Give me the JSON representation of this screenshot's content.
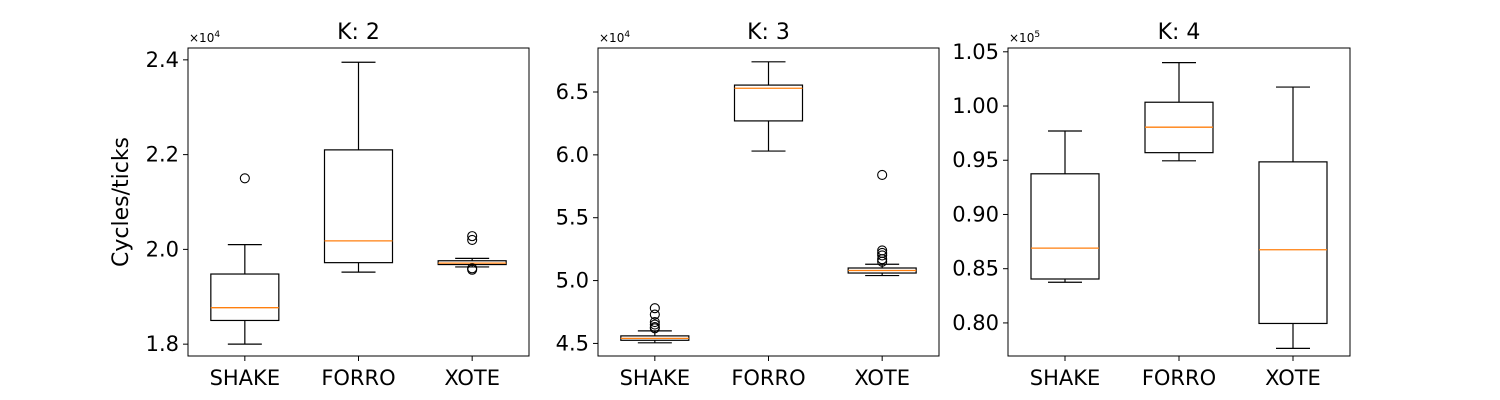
{
  "chart_data": [
    {
      "type": "box",
      "title": "K: 2",
      "ylabel": "Cycles/ticks",
      "multiplier_label": "×10",
      "multiplier_exp": "4",
      "categories": [
        "SHAKE",
        "FORRO",
        "XOTE"
      ],
      "ylim": [
        1.775,
        2.425
      ],
      "yticks": [
        1.8,
        2.0,
        2.2,
        2.4
      ],
      "ytick_labels": [
        "1.8",
        "2.0",
        "2.2",
        "2.4"
      ],
      "boxes": [
        {
          "whislo": 1.8,
          "q1": 1.85,
          "med": 1.877,
          "q3": 1.948,
          "whishi": 2.01,
          "fliers": [
            2.15
          ]
        },
        {
          "whislo": 1.952,
          "q1": 1.972,
          "med": 2.018,
          "q3": 2.21,
          "whishi": 2.395,
          "fliers": []
        },
        {
          "whislo": 1.963,
          "q1": 1.968,
          "med": 1.971,
          "q3": 1.976,
          "whishi": 1.981,
          "fliers": [
            2.028,
            2.02,
            1.96,
            1.957
          ]
        }
      ]
    },
    {
      "type": "box",
      "title": "K: 3",
      "ylabel": "",
      "multiplier_label": "×10",
      "multiplier_exp": "4",
      "categories": [
        "SHAKE",
        "FORRO",
        "XOTE"
      ],
      "ylim": [
        4.4,
        6.85
      ],
      "yticks": [
        4.5,
        5.0,
        5.5,
        6.0,
        6.5
      ],
      "ytick_labels": [
        "4.5",
        "5.0",
        "5.5",
        "6.0",
        "6.5"
      ],
      "boxes": [
        {
          "whislo": 4.505,
          "q1": 4.525,
          "med": 4.54,
          "q3": 4.56,
          "whishi": 4.6,
          "fliers": [
            4.78,
            4.73,
            4.67,
            4.65,
            4.63,
            4.62
          ]
        },
        {
          "whislo": 6.03,
          "q1": 6.27,
          "med": 6.53,
          "q3": 6.555,
          "whishi": 6.74,
          "fliers": []
        },
        {
          "whislo": 5.04,
          "q1": 5.06,
          "med": 5.08,
          "q3": 5.1,
          "whishi": 5.13,
          "fliers": [
            5.84,
            5.24,
            5.22,
            5.2,
            5.17,
            5.15
          ]
        }
      ]
    },
    {
      "type": "box",
      "title": "K: 4",
      "ylabel": "",
      "multiplier_label": "×10",
      "multiplier_exp": "5",
      "categories": [
        "SHAKE",
        "FORRO",
        "XOTE"
      ],
      "ylim": [
        0.7695,
        1.0535
      ],
      "yticks": [
        0.8,
        0.85,
        0.9,
        0.95,
        1.0,
        1.05
      ],
      "ytick_labels": [
        "0.80",
        "0.85",
        "0.90",
        "0.95",
        "1.00",
        "1.05"
      ],
      "boxes": [
        {
          "whislo": 0.8375,
          "q1": 0.8405,
          "med": 0.869,
          "q3": 0.9375,
          "whishi": 0.977,
          "fliers": []
        },
        {
          "whislo": 0.9495,
          "q1": 0.957,
          "med": 0.9805,
          "q3": 1.0035,
          "whishi": 1.04,
          "fliers": []
        },
        {
          "whislo": 0.7765,
          "q1": 0.7995,
          "med": 0.8675,
          "q3": 0.9485,
          "whishi": 1.0175,
          "fliers": []
        }
      ]
    }
  ]
}
